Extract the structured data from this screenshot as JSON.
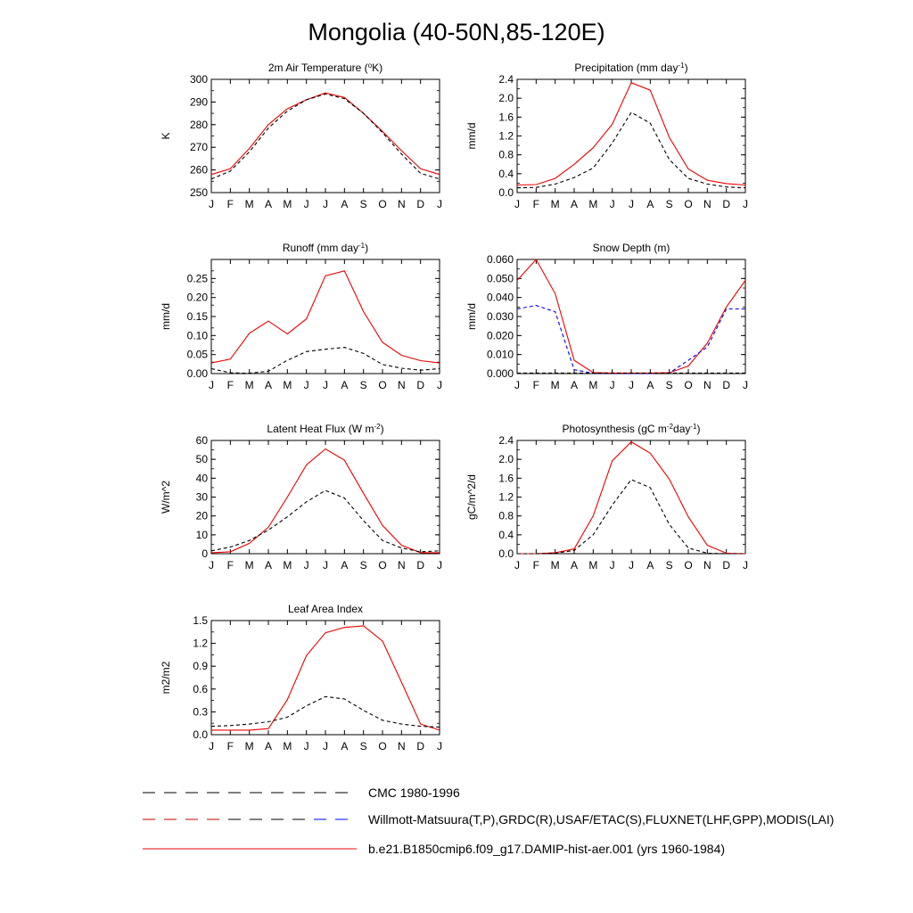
{
  "figure": {
    "title": "Mongolia (40-50N,85-120E)"
  },
  "legend": [
    {
      "label": "CMC 1980-1996",
      "style": "dash",
      "colors": [
        "#000000"
      ]
    },
    {
      "label": "Willmott-Matsuura(T,P),GRDC(R),USAF/ETAC(S),FLUXNET(LHF,GPP),MODIS(LAI)",
      "style": "dash",
      "colors": [
        "#cc0000",
        "#000000",
        "#0000ff"
      ]
    },
    {
      "label": "b.e21.B1850cmip6.f09_g17.DAMIP-hist-aer.001 (yrs 1960-1984)",
      "style": "solid",
      "colors": [
        "#ee0000"
      ]
    }
  ],
  "colors": {
    "model": "#ee0000",
    "obs": "#000000",
    "cmc": "#0000ff"
  },
  "chart_data": [
    {
      "type": "line",
      "title": "2m Air Temperature (°K)",
      "title_parts": [
        "2m Air Temperature (",
        "o",
        "K)"
      ],
      "ylabel": "K",
      "x": [
        "J",
        "F",
        "M",
        "A",
        "M",
        "J",
        "J",
        "A",
        "S",
        "O",
        "N",
        "D",
        "J"
      ],
      "ylim": [
        250,
        300
      ],
      "yticks": [
        "250",
        "260",
        "270",
        "280",
        "290",
        "300"
      ],
      "series": [
        {
          "role": "model",
          "values": [
            258,
            260.5,
            269.5,
            280,
            287,
            291,
            294,
            292,
            285,
            277,
            268.5,
            260.5,
            258
          ]
        },
        {
          "role": "obs",
          "values": [
            256,
            259.5,
            268,
            278.5,
            286,
            291,
            293.5,
            291.5,
            285,
            276.5,
            267,
            258.5,
            256
          ]
        }
      ]
    },
    {
      "type": "line",
      "title": "Precipitation (mm day-1)",
      "title_parts": [
        "Precipitation (mm day",
        "-1",
        ")"
      ],
      "ylabel": "mm/d",
      "x": [
        "J",
        "F",
        "M",
        "A",
        "M",
        "J",
        "J",
        "A",
        "S",
        "O",
        "N",
        "D",
        "J"
      ],
      "ylim": [
        0,
        2.4
      ],
      "yticks": [
        "0.0",
        "0.4",
        "0.8",
        "1.2",
        "1.6",
        "2.0",
        "2.4"
      ],
      "series": [
        {
          "role": "model",
          "values": [
            0.16,
            0.17,
            0.3,
            0.6,
            0.95,
            1.45,
            2.33,
            2.17,
            1.17,
            0.5,
            0.26,
            0.19,
            0.16
          ]
        },
        {
          "role": "obs",
          "values": [
            0.1,
            0.11,
            0.18,
            0.32,
            0.52,
            1.05,
            1.7,
            1.47,
            0.7,
            0.3,
            0.18,
            0.12,
            0.1
          ]
        }
      ]
    },
    {
      "type": "line",
      "title": "Runoff (mm day-1)",
      "title_parts": [
        "Runoff (mm day",
        "-1",
        ")"
      ],
      "ylabel": "mm/d",
      "x": [
        "J",
        "F",
        "M",
        "A",
        "M",
        "J",
        "J",
        "A",
        "S",
        "O",
        "N",
        "D",
        "J"
      ],
      "ylim": [
        0,
        0.3
      ],
      "yticks": [
        "0.00",
        "0.05",
        "0.10",
        "0.15",
        "0.20",
        "0.25"
      ],
      "series": [
        {
          "role": "model",
          "values": [
            0.028,
            0.038,
            0.106,
            0.138,
            0.104,
            0.144,
            0.257,
            0.27,
            0.163,
            0.082,
            0.048,
            0.034,
            0.028
          ]
        },
        {
          "role": "obs",
          "values": [
            0.013,
            0.002,
            0.001,
            0.006,
            0.035,
            0.058,
            0.064,
            0.069,
            0.053,
            0.024,
            0.014,
            0.009,
            0.013
          ]
        }
      ]
    },
    {
      "type": "line",
      "title": "Snow Depth (m)",
      "title_parts": [
        "Snow Depth (m)"
      ],
      "ylabel": "mm/d",
      "x": [
        "J",
        "F",
        "M",
        "A",
        "M",
        "J",
        "J",
        "A",
        "S",
        "O",
        "N",
        "D",
        "J"
      ],
      "ylim": [
        0,
        0.06
      ],
      "yticks": [
        "0.000",
        "0.010",
        "0.020",
        "0.030",
        "0.040",
        "0.050",
        "0.060"
      ],
      "series": [
        {
          "role": "model",
          "values": [
            0.049,
            0.06,
            0.042,
            0.007,
            0.0005,
            0.0003,
            0.0003,
            0.0003,
            0.0004,
            0.004,
            0.016,
            0.035,
            0.049
          ]
        },
        {
          "role": "cmc",
          "values": [
            0.034,
            0.0358,
            0.0325,
            0.002,
            0.0002,
            0.0001,
            0.0001,
            0.0001,
            0.0003,
            0.007,
            0.014,
            0.034,
            0.034
          ]
        },
        {
          "role": "obs",
          "values": [
            0.0003,
            0.0003,
            0.0003,
            0.0003,
            0.0003,
            0.0003,
            0.0003,
            0.0003,
            0.0003,
            0.0003,
            0.0003,
            0.0003,
            0.0003
          ]
        }
      ]
    },
    {
      "type": "line",
      "title": "Latent Heat Flux (W m-2)",
      "title_parts": [
        "Latent Heat Flux (W m",
        "-2",
        ")"
      ],
      "ylabel": "W/m^2",
      "x": [
        "J",
        "F",
        "M",
        "A",
        "M",
        "J",
        "J",
        "A",
        "S",
        "O",
        "N",
        "D",
        "J"
      ],
      "ylim": [
        0,
        60
      ],
      "yticks": [
        "0",
        "10",
        "20",
        "30",
        "40",
        "50",
        "60"
      ],
      "series": [
        {
          "role": "model",
          "values": [
            0.5,
            1,
            5.5,
            14,
            30,
            47,
            55.5,
            49.5,
            32,
            15,
            4.5,
            0.5,
            0.5
          ]
        },
        {
          "role": "obs",
          "values": [
            1.5,
            3.5,
            7,
            12.5,
            19.5,
            27.5,
            33.5,
            29.5,
            17.5,
            7,
            3,
            1,
            1.5
          ]
        }
      ]
    },
    {
      "type": "line",
      "title": "Photosynthesis (gC m-2day-1)",
      "title_parts": [
        "Photosynthesis (gC m",
        "-2",
        "day",
        "-1",
        ")"
      ],
      "ylabel": "gC/m^2/d",
      "x": [
        "J",
        "F",
        "M",
        "A",
        "M",
        "J",
        "J",
        "A",
        "S",
        "O",
        "N",
        "D",
        "J"
      ],
      "ylim": [
        0,
        2.4
      ],
      "yticks": [
        "0.0",
        "0.4",
        "0.8",
        "1.2",
        "1.6",
        "2.0",
        "2.4"
      ],
      "series": [
        {
          "role": "model",
          "values": [
            0,
            0,
            0.02,
            0.1,
            0.8,
            1.97,
            2.37,
            2.13,
            1.58,
            0.78,
            0.18,
            0.01,
            0
          ]
        },
        {
          "role": "obs",
          "values": [
            0,
            0,
            0.01,
            0.07,
            0.4,
            1.03,
            1.57,
            1.4,
            0.62,
            0.12,
            0.01,
            0,
            0
          ]
        }
      ]
    },
    {
      "type": "line",
      "title": "Leaf Area Index",
      "title_parts": [
        "Leaf Area Index"
      ],
      "ylabel": "m2/m2",
      "x": [
        "J",
        "F",
        "M",
        "A",
        "M",
        "J",
        "J",
        "A",
        "S",
        "O",
        "N",
        "D",
        "J"
      ],
      "ylim": [
        0,
        1.5
      ],
      "yticks": [
        "0.0",
        "0.3",
        "0.6",
        "0.9",
        "1.2",
        "1.5"
      ],
      "series": [
        {
          "role": "model",
          "values": [
            0.06,
            0.06,
            0.06,
            0.08,
            0.46,
            1.04,
            1.34,
            1.41,
            1.43,
            1.23,
            0.69,
            0.14,
            0.06
          ]
        },
        {
          "role": "obs",
          "values": [
            0.11,
            0.12,
            0.14,
            0.17,
            0.23,
            0.38,
            0.5,
            0.47,
            0.32,
            0.19,
            0.14,
            0.11,
            0.1
          ]
        }
      ]
    }
  ]
}
